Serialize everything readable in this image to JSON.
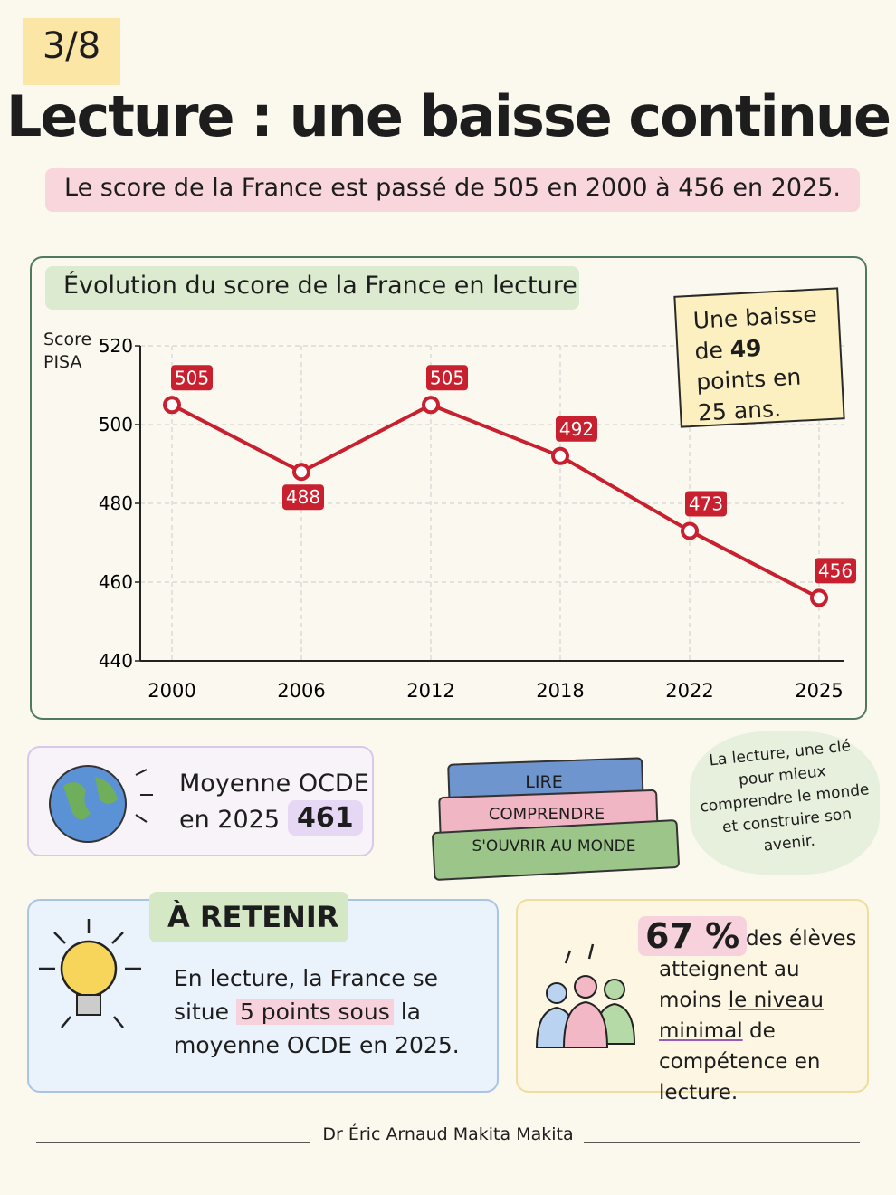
{
  "header": {
    "badge": "3/8",
    "title": "Lecture : une baisse continue",
    "subtitle": "Le score de la France est passé de 505 en 2000 à 456 en 2025."
  },
  "chart_data": {
    "type": "line",
    "title": "Évolution du score de la France en lecture",
    "y_label": "Score PISA",
    "categories": [
      "2000",
      "2006",
      "2012",
      "2018",
      "2022",
      "2025"
    ],
    "series": [
      {
        "name": "France",
        "color": "#c8202f",
        "values": [
          505,
          488,
          505,
          492,
          473,
          456
        ]
      }
    ],
    "ylim": [
      440,
      520
    ],
    "yticks": [
      440,
      460,
      480,
      500,
      520
    ],
    "grid": true,
    "annotation": [
      "Une baisse de",
      "49",
      "points en 25 ans."
    ]
  },
  "oecd": {
    "label": "Moyenne OCDE",
    "year": "en 2025 :",
    "value": "461"
  },
  "books": [
    "LIRE",
    "COMPRENDRE",
    "S'OUVRIR AU MONDE"
  ],
  "quote": "La lecture, une clé pour mieux comprendre le monde et construire son avenir.",
  "retenir": {
    "title": "À RETENIR",
    "line1": "En lecture, la France se situe",
    "highlight": "5 points sous",
    "line2": "la moyenne OCDE en 2025."
  },
  "students": {
    "value": "67 %",
    "text1": "des élèves atteignent au moins",
    "underline": "le niveau minimal",
    "text2": "de compétence en lecture."
  },
  "footer": "Dr Éric Arnaud Makita Makita"
}
